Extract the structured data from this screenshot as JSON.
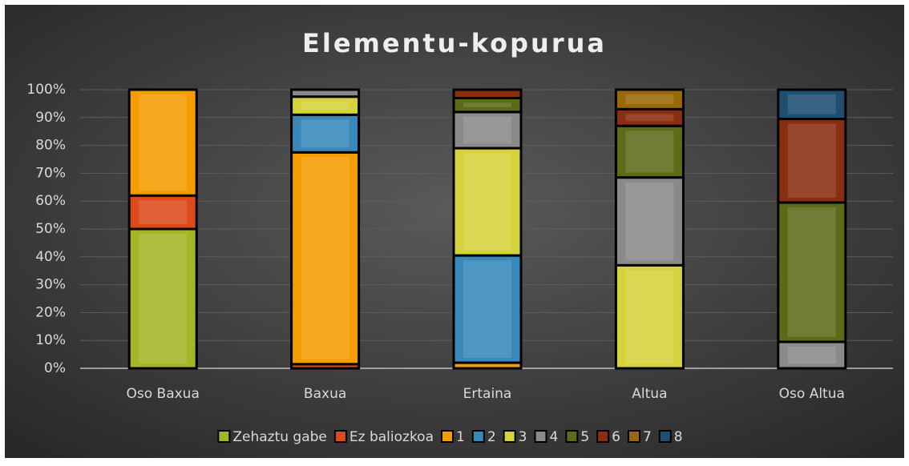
{
  "chart_data": {
    "type": "stacked_bar",
    "title": "Elementu-kopurua",
    "categories": [
      "Oso Baxua",
      "Baxua",
      "Ertaina",
      "Altua",
      "Oso Altua"
    ],
    "series": [
      {
        "name": "Zehaztu gabe",
        "color": "#a4b526",
        "values": [
          50,
          0,
          0,
          0,
          0
        ]
      },
      {
        "name": "Ez baliozkoa",
        "color": "#dd4a1c",
        "values": [
          12,
          1.5,
          0,
          0,
          0
        ]
      },
      {
        "name": "1",
        "color": "#f59d00",
        "values": [
          38,
          76,
          2,
          0,
          0
        ]
      },
      {
        "name": "2",
        "color": "#3888ba",
        "values": [
          0,
          13.5,
          38.5,
          0,
          0
        ]
      },
      {
        "name": "3",
        "color": "#d5d23c",
        "values": [
          0,
          6.5,
          38.5,
          37,
          0
        ]
      },
      {
        "name": "4",
        "color": "#8a8a8a",
        "values": [
          0,
          2.5,
          13,
          31.5,
          9.5
        ]
      },
      {
        "name": "5",
        "color": "#5c6b1a",
        "values": [
          0,
          0,
          5,
          18.5,
          50
        ]
      },
      {
        "name": "6",
        "color": "#8a2e12",
        "values": [
          0,
          0,
          3,
          6,
          30
        ]
      },
      {
        "name": "7",
        "color": "#9a6808",
        "values": [
          0,
          0,
          0,
          7,
          0
        ]
      },
      {
        "name": "8",
        "color": "#1e4f70",
        "values": [
          0,
          0,
          0,
          0,
          10.5
        ]
      }
    ],
    "ylim": [
      0,
      100
    ],
    "yticks": [
      {
        "value": 0,
        "label": "0%"
      },
      {
        "value": 10,
        "label": "10%"
      },
      {
        "value": 20,
        "label": "20%"
      },
      {
        "value": 30,
        "label": "30%"
      },
      {
        "value": 40,
        "label": "40%"
      },
      {
        "value": 50,
        "label": "50%"
      },
      {
        "value": 60,
        "label": "60%"
      },
      {
        "value": 70,
        "label": "70%"
      },
      {
        "value": 80,
        "label": "80%"
      },
      {
        "value": 90,
        "label": "90%"
      },
      {
        "value": 100,
        "label": "100%"
      }
    ],
    "grid": true,
    "legend": "bottom"
  }
}
